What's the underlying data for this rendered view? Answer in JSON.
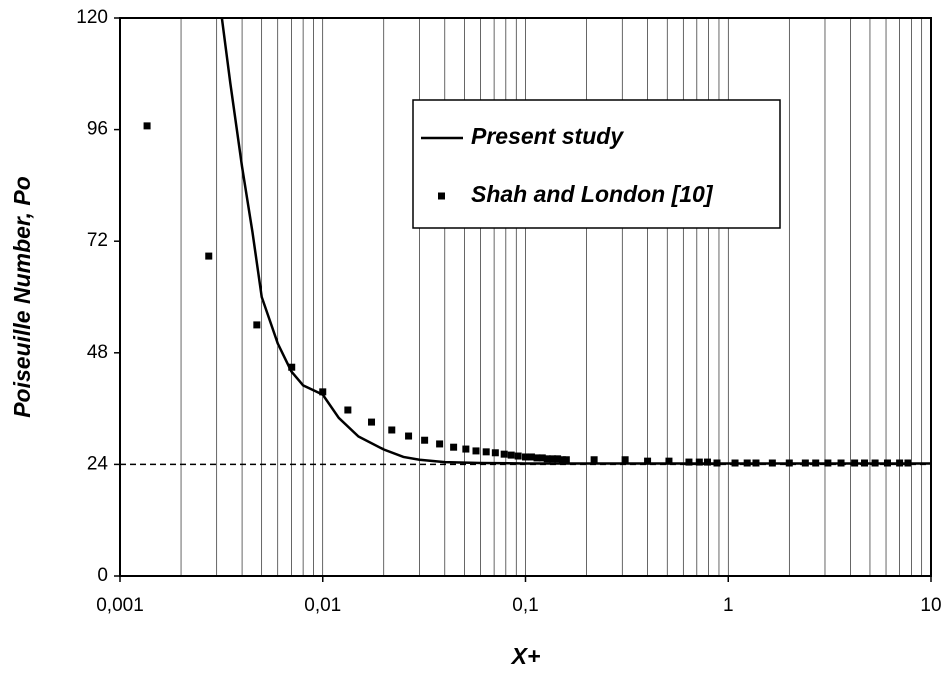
{
  "chart_data": {
    "type": "line",
    "x_label": "X+",
    "y_label": "Poiseuille Number, Po",
    "xlim": [
      0.001,
      10
    ],
    "ylim": [
      0,
      120
    ],
    "xscale": "log",
    "xticks": [
      {
        "value": 0.001,
        "label": "0,001"
      },
      {
        "value": 0.01,
        "label": "0,01"
      },
      {
        "value": 0.1,
        "label": "0,1"
      },
      1,
      10
    ],
    "yticks": [
      0,
      24,
      48,
      72,
      96,
      120
    ],
    "grid": true,
    "legend": "upper right",
    "reference_line": {
      "y": 24,
      "color": "#000000"
    },
    "series": [
      {
        "name": "Present study",
        "type": "line",
        "color": "#000000",
        "x": [
          0.00318,
          0.0035,
          0.004,
          0.0045,
          0.005,
          0.006,
          0.007,
          0.008,
          0.01,
          0.012,
          0.015,
          0.02,
          0.025,
          0.03,
          0.04,
          0.06,
          0.1,
          1,
          10
        ],
        "values": [
          120,
          106,
          88,
          74,
          60,
          50,
          44,
          41,
          39,
          34,
          30,
          27.2,
          25.6,
          25,
          24.5,
          24.3,
          24.2,
          24.2,
          24.2
        ]
      },
      {
        "name": "Shah and London [10]",
        "type": "scatter",
        "color": "#000000",
        "x": [
          0.00136,
          0.00274,
          0.00473,
          0.00703,
          0.01,
          0.0133,
          0.0174,
          0.0219,
          0.0265,
          0.0318,
          0.0377,
          0.0442,
          0.0508,
          0.057,
          0.064,
          0.071,
          0.0785,
          0.085,
          0.092,
          0.1,
          0.107,
          0.114,
          0.121,
          0.128,
          0.136,
          0.144,
          0.152,
          0.159,
          0.218,
          0.31,
          0.4,
          0.51,
          0.64,
          0.72,
          0.79,
          0.88,
          1.08,
          1.24,
          1.37,
          1.65,
          2.0,
          2.4,
          2.7,
          3.1,
          3.6,
          4.2,
          4.7,
          5.3,
          6.1,
          7.0,
          7.7
        ],
        "values": [
          96.8,
          68.8,
          54,
          44.9,
          39.6,
          35.7,
          33.1,
          31.4,
          30.1,
          29.2,
          28.4,
          27.7,
          27.3,
          26.9,
          26.7,
          26.5,
          26.2,
          26,
          25.8,
          25.6,
          25.6,
          25.4,
          25.4,
          25.2,
          25.2,
          25.2,
          25,
          25,
          25,
          25,
          24.7,
          24.7,
          24.5,
          24.5,
          24.5,
          24.3,
          24.3,
          24.3,
          24.3,
          24.3,
          24.3,
          24.3,
          24.3,
          24.3,
          24.3,
          24.3,
          24.3,
          24.3,
          24.3,
          24.3,
          24.3
        ]
      }
    ]
  }
}
